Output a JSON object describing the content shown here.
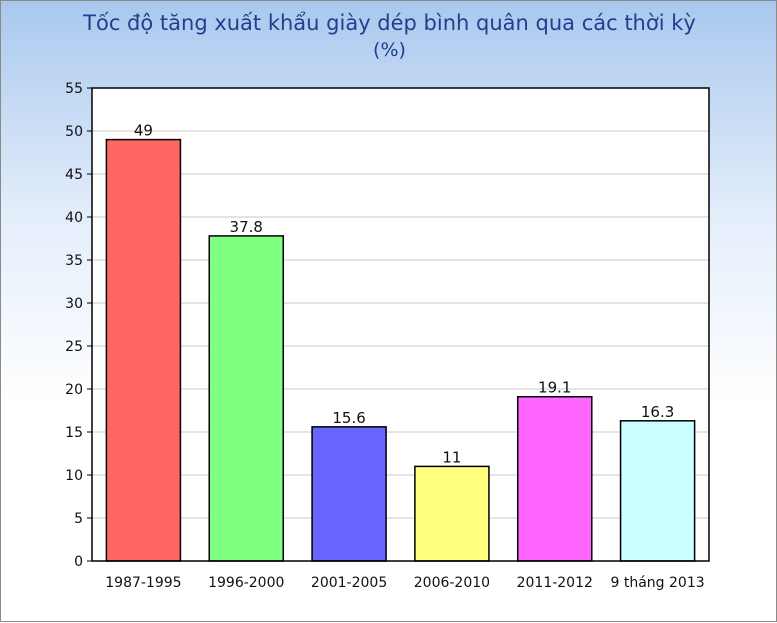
{
  "chart_data": {
    "type": "bar",
    "title": "Tốc độ tăng xuất khẩu giày dép bình quân qua các thời kỳ",
    "subtitle": "(%)",
    "categories": [
      "1987-1995",
      "1996-2000",
      "2001-2005",
      "2006-2010",
      "2011-2012",
      "9 tháng 2013"
    ],
    "values": [
      49,
      37.8,
      15.6,
      11,
      19.1,
      16.3
    ],
    "data_labels": [
      "49",
      "37.8",
      "15.6",
      "11",
      "19.1",
      "16.3"
    ],
    "colors": [
      "#ff6666",
      "#80ff80",
      "#6666ff",
      "#ffff80",
      "#ff66ff",
      "#ccffff"
    ],
    "ylim": [
      0,
      55
    ],
    "yticks": [
      0,
      5,
      10,
      15,
      20,
      25,
      30,
      35,
      40,
      45,
      50,
      55
    ],
    "grid": true,
    "legend": "none"
  }
}
